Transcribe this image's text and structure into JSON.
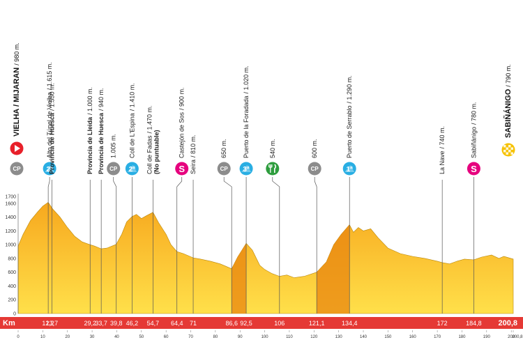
{
  "chart_data": {
    "type": "area",
    "xlim": [
      0,
      200.8
    ],
    "ylim": [
      0,
      1700
    ],
    "y_ticks": [
      0,
      200,
      400,
      600,
      800,
      1000,
      1200,
      1400,
      1600,
      1700
    ],
    "x_ticks": [
      0,
      10,
      20,
      30,
      40,
      50,
      60,
      70,
      80,
      90,
      100,
      110,
      120,
      130,
      140,
      150,
      160,
      170,
      180,
      190,
      200,
      200.8
    ],
    "km_axis_label": "Km",
    "profile": [
      [
        0,
        980
      ],
      [
        2,
        1150
      ],
      [
        5,
        1350
      ],
      [
        8,
        1480
      ],
      [
        10,
        1560
      ],
      [
        12.2,
        1615
      ],
      [
        14,
        1520
      ],
      [
        17,
        1400
      ],
      [
        20,
        1250
      ],
      [
        23,
        1120
      ],
      [
        26,
        1040
      ],
      [
        29.2,
        1000
      ],
      [
        31,
        980
      ],
      [
        33.7,
        940
      ],
      [
        36,
        950
      ],
      [
        39.8,
        1005
      ],
      [
        42,
        1150
      ],
      [
        44,
        1330
      ],
      [
        46.2,
        1410
      ],
      [
        48,
        1440
      ],
      [
        50,
        1380
      ],
      [
        52,
        1420
      ],
      [
        54.7,
        1470
      ],
      [
        57,
        1320
      ],
      [
        60,
        1150
      ],
      [
        62,
        1000
      ],
      [
        64.4,
        900
      ],
      [
        67,
        870
      ],
      [
        71,
        810
      ],
      [
        74,
        790
      ],
      [
        78,
        760
      ],
      [
        82,
        720
      ],
      [
        84,
        690
      ],
      [
        86.6,
        650
      ],
      [
        89,
        820
      ],
      [
        92.5,
        1020
      ],
      [
        95,
        920
      ],
      [
        98,
        700
      ],
      [
        100,
        640
      ],
      [
        103,
        580
      ],
      [
        106,
        540
      ],
      [
        109,
        560
      ],
      [
        112,
        520
      ],
      [
        116,
        540
      ],
      [
        121.1,
        600
      ],
      [
        125,
        750
      ],
      [
        128,
        1000
      ],
      [
        131,
        1150
      ],
      [
        134.4,
        1290
      ],
      [
        136,
        1180
      ],
      [
        138,
        1250
      ],
      [
        140,
        1200
      ],
      [
        143,
        1230
      ],
      [
        146,
        1100
      ],
      [
        150,
        950
      ],
      [
        155,
        870
      ],
      [
        160,
        830
      ],
      [
        165,
        800
      ],
      [
        170,
        760
      ],
      [
        172,
        740
      ],
      [
        175,
        720
      ],
      [
        178,
        760
      ],
      [
        181,
        790
      ],
      [
        184.8,
        780
      ],
      [
        188,
        820
      ],
      [
        192,
        850
      ],
      [
        195,
        800
      ],
      [
        197,
        830
      ],
      [
        200.8,
        790
      ]
    ],
    "km_values": [
      {
        "km": 12.2,
        "label": "12,2"
      },
      {
        "km": 13.7,
        "label": "13,7"
      },
      {
        "km": 29.2,
        "label": "29,2"
      },
      {
        "km": 33.7,
        "label": "33,7"
      },
      {
        "km": 39.8,
        "label": "39,8"
      },
      {
        "km": 46.2,
        "label": "46,2"
      },
      {
        "km": 54.7,
        "label": "54,7"
      },
      {
        "km": 64.4,
        "label": "64,4"
      },
      {
        "km": 71,
        "label": "71"
      },
      {
        "km": 86.6,
        "label": "86,6"
      },
      {
        "km": 92.5,
        "label": "92,5"
      },
      {
        "km": 106,
        "label": "106"
      },
      {
        "km": 121.1,
        "label": "121,1"
      },
      {
        "km": 134.4,
        "label": "134,4"
      },
      {
        "km": 172,
        "label": "172"
      },
      {
        "km": 184.8,
        "label": "184,8"
      },
      {
        "km": 200.8,
        "label": "200,8"
      }
    ],
    "points": [
      {
        "km": 0,
        "name": "VIELHA / MIJARAN",
        "alt": "/ 980 m.",
        "icon": "start",
        "bold": true
      },
      {
        "km": 0,
        "name": "",
        "alt": "",
        "icon": "cp"
      },
      {
        "km": 12.2,
        "name": "Alto del Túnel de Vielha",
        "alt": "/ 1.615 m.",
        "icon": "cat",
        "cat": "2ª"
      },
      {
        "km": 13.7,
        "name": "Provincia de Huesca",
        "alt": "/ 1.550 m.",
        "icon": "none",
        "boldname": true
      },
      {
        "km": 29.2,
        "name": "Provincia de Lleida",
        "alt": "/ 1.000 m.",
        "icon": "none",
        "boldname": true
      },
      {
        "km": 33.7,
        "name": "Provincia de Huesca",
        "alt": "/ 940 m.",
        "icon": "none",
        "boldname": true
      },
      {
        "km": 39.8,
        "name": "",
        "alt": "1.005 m.",
        "icon": "cp"
      },
      {
        "km": 46.2,
        "name": "Coll de L'Espina",
        "alt": "/ 1.410 m.",
        "icon": "cat",
        "cat": "2ª"
      },
      {
        "km": 54.7,
        "name": "Coll de Fadas",
        "alt": "/ 1.470 m.",
        "icon": "none",
        "sub": "(No puntuable)"
      },
      {
        "km": 64.4,
        "name": "Castejón de Sos",
        "alt": "/ 900 m.",
        "icon": "sprint"
      },
      {
        "km": 71,
        "name": "Seira",
        "alt": "/ 810 m.",
        "icon": "none"
      },
      {
        "km": 86.6,
        "name": "",
        "alt": "650 m.",
        "icon": "cp"
      },
      {
        "km": 92.5,
        "name": "Puerto de la Foradada",
        "alt": "/ 1.020 m.",
        "icon": "cat",
        "cat": "3ª"
      },
      {
        "km": 106,
        "name": "",
        "alt": "540 m.",
        "icon": "feed"
      },
      {
        "km": 121.1,
        "name": "",
        "alt": "600 m.",
        "icon": "cp"
      },
      {
        "km": 134.4,
        "name": "Puerto de Serrablo",
        "alt": "/ 1.290 m.",
        "icon": "cat",
        "cat": "1ª"
      },
      {
        "km": 172,
        "name": "La Nave",
        "alt": "/ 740 m.",
        "icon": "none"
      },
      {
        "km": 184.8,
        "name": "Sabiñánigo",
        "alt": "/ 780 m.",
        "icon": "sprint"
      },
      {
        "km": 200.8,
        "name": "SABIÑÁNIGO",
        "alt": "/ 790 m.",
        "icon": "finish",
        "bold": true
      }
    ]
  },
  "colors": {
    "fill_top": "#f5a623",
    "fill_bottom": "#ffd23a",
    "dark_fill": "#e8860f",
    "bar": "#e53935",
    "cat_blue": "#29aee3",
    "cp_grey": "#8c8c8c",
    "sprint_pink": "#e6007e",
    "feed_green": "#2e9d3e",
    "start_red": "#e8202a",
    "finish_yellow": "#f6c200"
  },
  "icons": {
    "start": "start-arrow-icon",
    "cp": "checkpoint-icon",
    "cat": "mountain-category-icon",
    "sprint": "sprint-icon",
    "feed": "feed-zone-icon",
    "finish": "finish-flag-icon"
  }
}
